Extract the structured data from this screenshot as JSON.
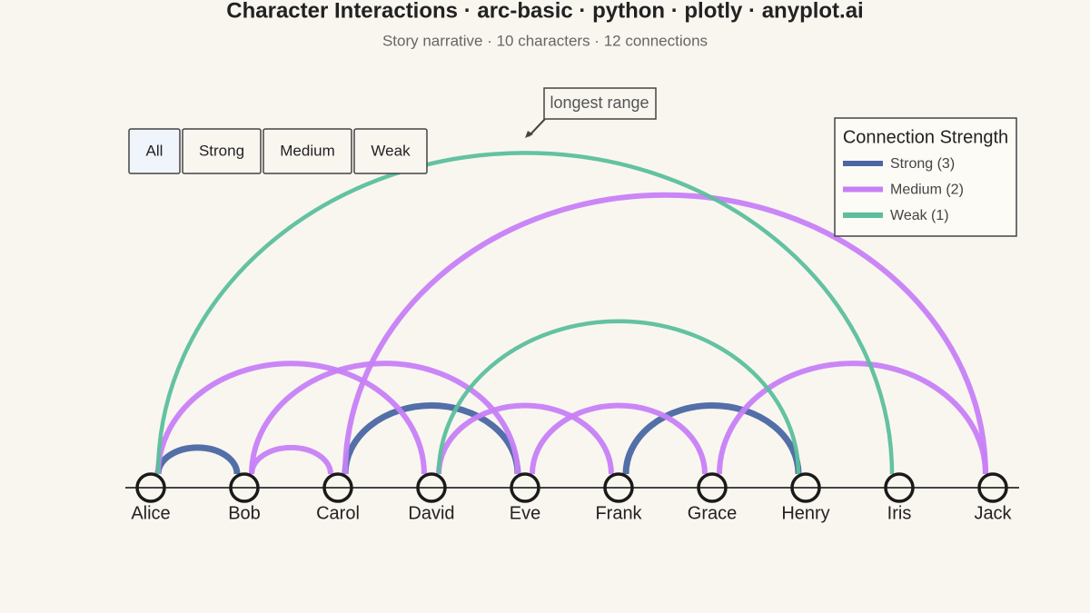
{
  "chart_data": {
    "type": "arc",
    "title": "Character Interactions · arc-basic · python · plotly · anyplot.ai",
    "subtitle": "Story narrative · 10 characters · 12 connections",
    "nodes": [
      "Alice",
      "Bob",
      "Carol",
      "David",
      "Eve",
      "Frank",
      "Grace",
      "Henry",
      "Iris",
      "Jack"
    ],
    "edges": [
      {
        "source": "Alice",
        "target": "Bob",
        "weight": 3
      },
      {
        "source": "Carol",
        "target": "Eve",
        "weight": 3
      },
      {
        "source": "Frank",
        "target": "Henry",
        "weight": 3
      },
      {
        "source": "Alice",
        "target": "David",
        "weight": 2
      },
      {
        "source": "Bob",
        "target": "Carol",
        "weight": 2
      },
      {
        "source": "Bob",
        "target": "Eve",
        "weight": 2
      },
      {
        "source": "Carol",
        "target": "Jack",
        "weight": 2
      },
      {
        "source": "David",
        "target": "Frank",
        "weight": 2
      },
      {
        "source": "Eve",
        "target": "Grace",
        "weight": 2
      },
      {
        "source": "Grace",
        "target": "Jack",
        "weight": 2
      },
      {
        "source": "Alice",
        "target": "Iris",
        "weight": 1
      },
      {
        "source": "David",
        "target": "Henry",
        "weight": 1
      }
    ],
    "legend_title": "Connection Strength",
    "series": [
      {
        "name": "Strong (3)",
        "color": "#4a67a3",
        "weight": 3
      },
      {
        "name": "Medium (2)",
        "color": "#c77ff5",
        "weight": 2
      },
      {
        "name": "Weak (1)",
        "color": "#5bbf9c",
        "weight": 1
      }
    ],
    "buttons": [
      "All",
      "Strong",
      "Medium",
      "Weak"
    ],
    "annotation": "longest range"
  }
}
